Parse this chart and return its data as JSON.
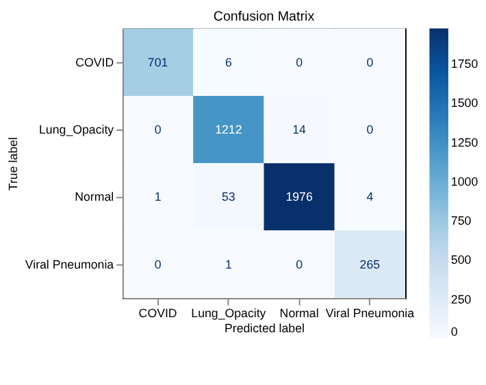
{
  "chart_data": {
    "type": "heatmap",
    "title": "Confusion Matrix",
    "xlabel": "Predicted label",
    "ylabel": "True label",
    "categories": [
      "COVID",
      "Lung_Opacity",
      "Normal",
      "Viral Pneumonia"
    ],
    "y_categories": [
      "COVID",
      "Lung_Opacity",
      "Normal",
      "Viral Pneumonia"
    ],
    "cells": [
      [
        701,
        6,
        0,
        0
      ],
      [
        0,
        1212,
        14,
        0
      ],
      [
        1,
        53,
        1976,
        4
      ],
      [
        0,
        1,
        0,
        265
      ]
    ],
    "clim": [
      0,
      1976
    ],
    "cticks": [
      0,
      250,
      500,
      750,
      1000,
      1250,
      1500,
      1750
    ],
    "data_labels": true
  }
}
